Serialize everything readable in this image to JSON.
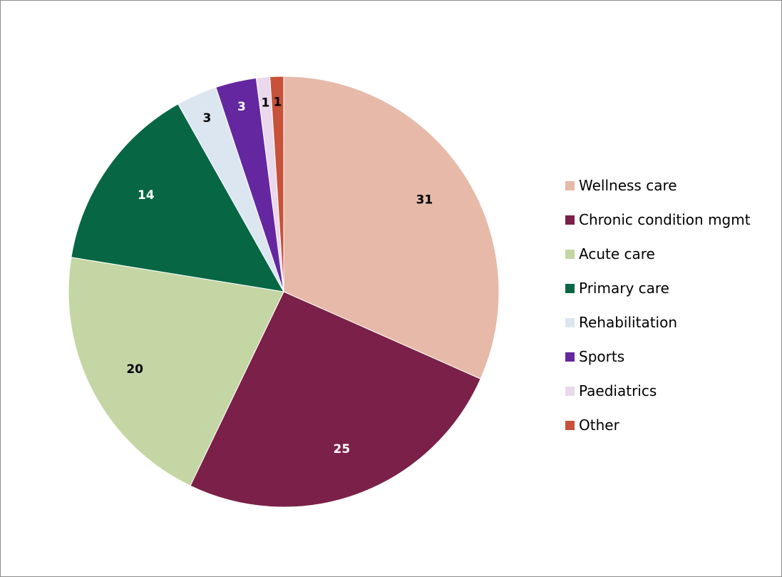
{
  "chart_data": {
    "type": "pie",
    "title": "",
    "categories": [
      "Wellness care",
      "Chronic condition mgmt",
      "Acute care",
      "Primary care",
      "Rehabilitation",
      "Sports",
      "Paediatrics",
      "Other"
    ],
    "values": [
      31,
      25,
      20,
      14,
      3,
      3,
      1,
      1
    ],
    "data_labels": [
      "31",
      "25",
      "20",
      "14",
      "3",
      "3",
      "1",
      "1"
    ],
    "colors": [
      "#e6b9a8",
      "#7b2048",
      "#c4d6a4",
      "#076744",
      "#dce6f0",
      "#6427a0",
      "#ead8ec",
      "#c8513a"
    ],
    "label_colors": [
      "#000000",
      "#ffffff",
      "#000000",
      "#ffffff",
      "#000000",
      "#ffffff",
      "#000000",
      "#000000"
    ],
    "start_angle_deg": 0,
    "direction": "clockwise",
    "legend_position": "right"
  }
}
